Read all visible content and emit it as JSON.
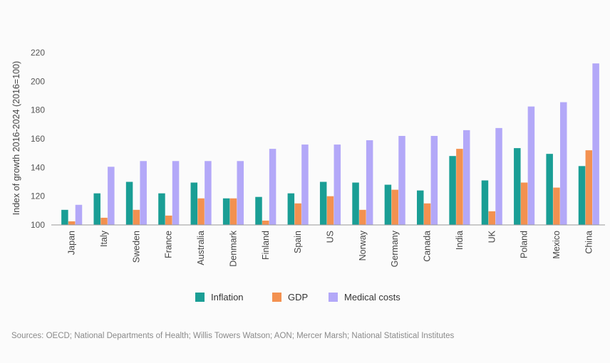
{
  "chart_data": {
    "type": "bar",
    "title": "",
    "xlabel": "",
    "ylabel": "Index of growth 2016-2024 (2016=100)",
    "ylim": [
      100,
      220
    ],
    "yticks": [
      100,
      120,
      140,
      160,
      180,
      200,
      220
    ],
    "grid": false,
    "legend_position": "bottom-center",
    "categories": [
      "Japan",
      "Italy",
      "Sweden",
      "France",
      "Australia",
      "Denmark",
      "Finland",
      "Spain",
      "US",
      "Norway",
      "Germany",
      "Canada",
      "India",
      "UK",
      "Poland",
      "Mexico",
      "China"
    ],
    "series": [
      {
        "name": "Inflation",
        "color": "#1a9e95",
        "values": [
          110.5,
          122,
          130,
          122,
          129.5,
          118.5,
          119.5,
          122,
          130,
          129.5,
          128,
          124,
          148,
          131,
          153.5,
          149.5,
          141
        ]
      },
      {
        "name": "GDP",
        "color": "#f39150",
        "values": [
          102.5,
          105,
          110.5,
          106.5,
          118.5,
          118.5,
          103,
          115,
          120,
          110.5,
          124.5,
          115,
          153,
          109.5,
          129.5,
          126,
          152
        ]
      },
      {
        "name": "Medical costs",
        "color": "#b3a8f8",
        "values": [
          114,
          140.5,
          144.5,
          144.5,
          144.5,
          144.5,
          153,
          156,
          156,
          159,
          162,
          162,
          166,
          167.5,
          182.5,
          185.5,
          212.5
        ]
      }
    ]
  },
  "source": "Sources: OECD; National Departments of Health; Willis Towers Watson; AON; Mercer Marsh; National Statistical Institutes",
  "colors": {
    "axis": "#9a9a9a",
    "background": "#fbfbfb"
  }
}
